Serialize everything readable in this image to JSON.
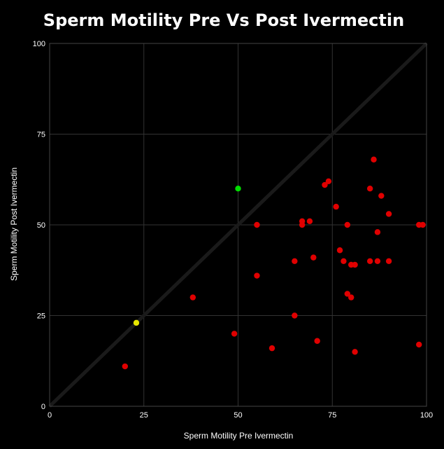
{
  "chart_data": {
    "type": "scatter",
    "title": "Sperm Motility Pre Vs Post Ivermectin",
    "xlabel": "Sperm Motility Pre Ivermectin",
    "ylabel": "Sperm Motility Post Ivermectin",
    "xlim": [
      0,
      100
    ],
    "ylim": [
      0,
      100
    ],
    "x_ticks": [
      "0",
      "25",
      "50",
      "75",
      "100"
    ],
    "y_ticks": [
      "0",
      "25",
      "50",
      "75",
      "100"
    ],
    "grid": true,
    "reference_line": {
      "from": [
        0,
        0
      ],
      "to": [
        100,
        100
      ],
      "color": "#1a1a1a"
    },
    "colors": {
      "background": "#000000",
      "grid": "#333333",
      "red": "#e00000",
      "green": "#00dd00",
      "yellow": "#e6e600"
    },
    "series": [
      {
        "color": "#e00000",
        "points": [
          [
            20,
            11
          ],
          [
            38,
            30
          ],
          [
            49,
            20
          ],
          [
            55,
            50
          ],
          [
            55,
            36
          ],
          [
            59,
            16
          ],
          [
            65,
            40
          ],
          [
            65,
            25
          ],
          [
            67,
            51
          ],
          [
            67,
            50
          ],
          [
            69,
            51
          ],
          [
            70,
            41
          ],
          [
            71,
            18
          ],
          [
            73,
            61
          ],
          [
            74,
            62
          ],
          [
            76,
            55
          ],
          [
            77,
            43
          ],
          [
            78,
            40
          ],
          [
            79,
            50
          ],
          [
            79,
            31
          ],
          [
            80,
            39
          ],
          [
            80,
            30
          ],
          [
            81,
            39
          ],
          [
            81,
            15
          ],
          [
            85,
            60
          ],
          [
            85,
            40
          ],
          [
            86,
            68
          ],
          [
            87,
            48
          ],
          [
            87,
            40
          ],
          [
            88,
            58
          ],
          [
            90,
            53
          ],
          [
            90,
            40
          ],
          [
            98,
            50
          ],
          [
            98,
            17
          ],
          [
            99,
            50
          ]
        ]
      },
      {
        "color": "#00dd00",
        "points": [
          [
            50,
            60
          ]
        ]
      },
      {
        "color": "#e6e600",
        "points": [
          [
            23,
            23
          ]
        ]
      }
    ]
  }
}
